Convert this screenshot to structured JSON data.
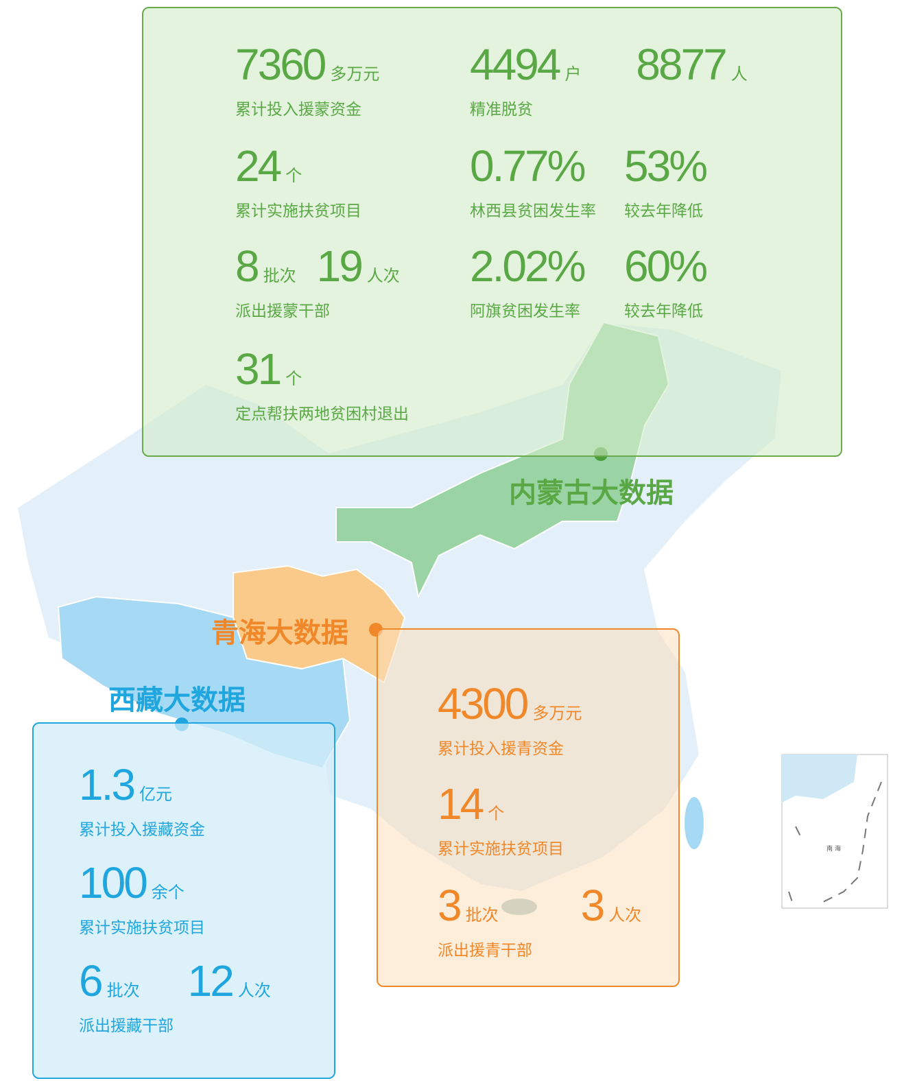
{
  "inner_mongolia": {
    "label": "内蒙古大数据",
    "rows": [
      [
        {
          "figures": [
            {
              "value": "7360",
              "unit": "多万元"
            }
          ],
          "caption": "累计投入援蒙资金"
        },
        {
          "figures": [
            {
              "value": "4494",
              "unit": "户"
            },
            {
              "value": "8877",
              "unit": "人"
            }
          ],
          "caption": "精准脱贫"
        }
      ],
      [
        {
          "figures": [
            {
              "value": "24",
              "unit": "个"
            }
          ],
          "caption": "累计实施扶贫项目"
        },
        {
          "figures": [
            {
              "value": "0.77%"
            }
          ],
          "caption": "林西县贫困发生率"
        },
        {
          "figures": [
            {
              "value": "53%"
            }
          ],
          "caption": "较去年降低"
        }
      ],
      [
        {
          "figures": [
            {
              "value": "8",
              "unit": "批次"
            },
            {
              "value": "19",
              "unit": "人次"
            }
          ],
          "caption": "派出援蒙干部"
        },
        {
          "figures": [
            {
              "value": "2.02%"
            }
          ],
          "caption": "阿旗贫困发生率"
        },
        {
          "figures": [
            {
              "value": "60%"
            }
          ],
          "caption": "较去年降低"
        }
      ],
      [
        {
          "figures": [
            {
              "value": "31",
              "unit": "个"
            }
          ],
          "caption": "定点帮扶两地贫困村退出"
        }
      ]
    ]
  },
  "qinghai": {
    "label": "青海大数据",
    "groups": [
      {
        "figures": [
          {
            "value": "4300",
            "unit": "多万元"
          }
        ],
        "caption": "累计投入援青资金"
      },
      {
        "figures": [
          {
            "value": "14",
            "unit": "个"
          }
        ],
        "caption": "累计实施扶贫项目"
      },
      {
        "figures": [
          {
            "value": "3",
            "unit": "批次"
          },
          {
            "value": "3",
            "unit": "人次"
          }
        ],
        "caption": "派出援青干部"
      }
    ]
  },
  "tibet": {
    "label": "西藏大数据",
    "groups": [
      {
        "figures": [
          {
            "value": "1.3",
            "unit": "亿元"
          }
        ],
        "caption": "累计投入援藏资金"
      },
      {
        "figures": [
          {
            "value": "100",
            "unit": "余个"
          }
        ],
        "caption": "累计实施扶贫项目"
      },
      {
        "figures": [
          {
            "value": "6",
            "unit": "批次"
          },
          {
            "value": "12",
            "unit": "人次"
          }
        ],
        "caption": "派出援藏干部"
      }
    ]
  },
  "inset": {
    "label": "南 海"
  }
}
